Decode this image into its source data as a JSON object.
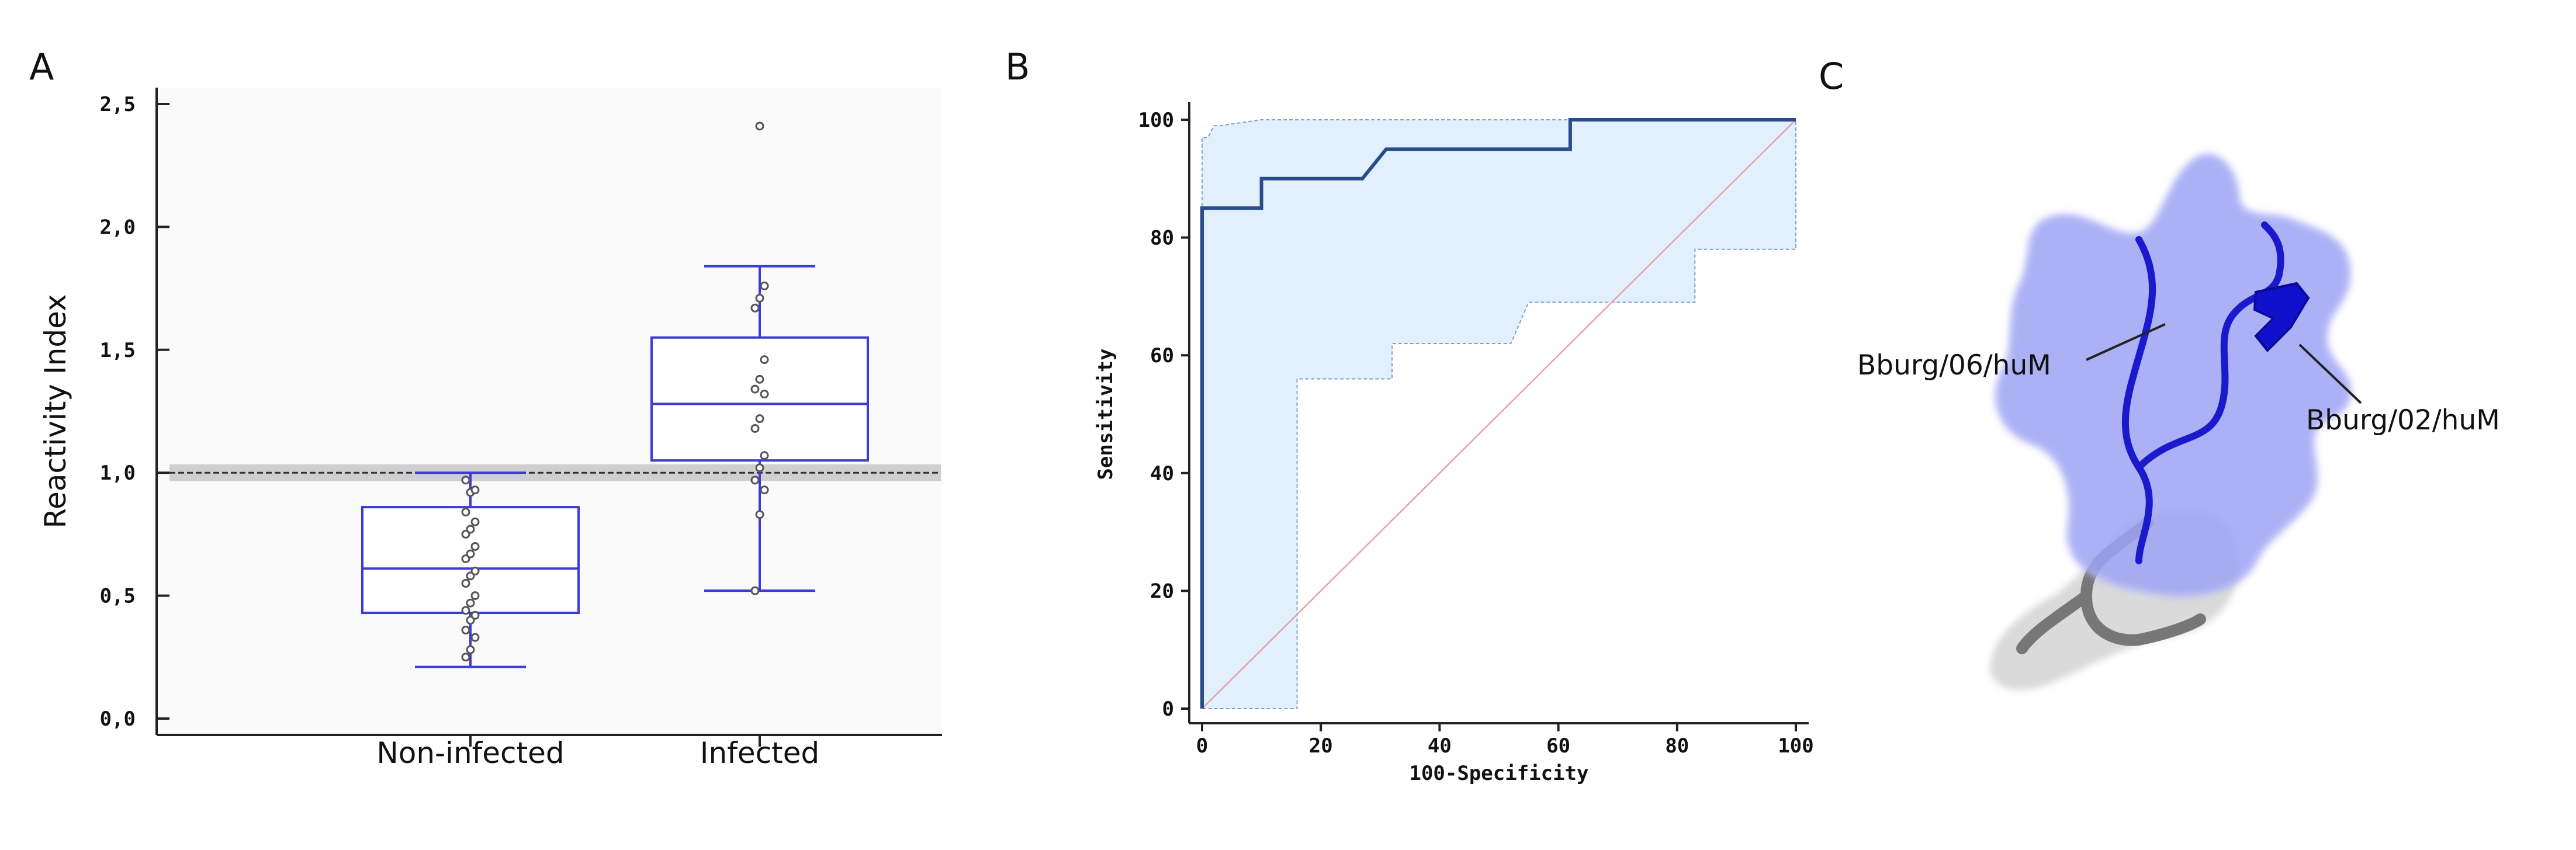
{
  "panels": {
    "a": "A",
    "b": "B",
    "c": "C"
  },
  "chart_data": [
    {
      "type": "box",
      "panel": "A",
      "ylabel": "Reactivity Index",
      "xlabel": "",
      "ylim": [
        0,
        2.5
      ],
      "yticks": [
        0,
        0.5,
        1.0,
        1.5,
        2.0,
        2.5
      ],
      "ytick_labels": [
        "0,0",
        "0,5",
        "1,0",
        "1,5",
        "2,0",
        "2,5"
      ],
      "cutoff": 1.0,
      "cutoff_band": [
        0.98,
        1.02
      ],
      "categories": [
        "Non-infected",
        "Infected"
      ],
      "boxes": [
        {
          "name": "Non-infected",
          "whisker_low": 0.21,
          "q1": 0.43,
          "median": 0.61,
          "q3": 0.86,
          "whisker_high": 1.0,
          "points": [
            0.25,
            0.28,
            0.33,
            0.36,
            0.4,
            0.42,
            0.44,
            0.47,
            0.5,
            0.55,
            0.58,
            0.6,
            0.65,
            0.67,
            0.7,
            0.75,
            0.77,
            0.8,
            0.84,
            0.92,
            0.93,
            0.97
          ]
        },
        {
          "name": "Infected",
          "whisker_low": 0.52,
          "q1": 1.05,
          "median": 1.28,
          "q3": 1.55,
          "whisker_high": 1.84,
          "points": [
            0.52,
            0.83,
            0.93,
            0.97,
            1.02,
            1.07,
            1.18,
            1.22,
            1.32,
            1.34,
            1.38,
            1.46,
            1.67,
            1.71,
            1.76
          ],
          "outliers": [
            2.41
          ]
        }
      ]
    },
    {
      "type": "line",
      "panel": "B",
      "title": "",
      "xlabel": "100-Specificity",
      "ylabel": "Sensitivity",
      "xlim": [
        0,
        100
      ],
      "ylim": [
        0,
        100
      ],
      "xticks": [
        0,
        20,
        40,
        60,
        80,
        100
      ],
      "yticks": [
        0,
        20,
        40,
        60,
        80,
        100
      ],
      "roc_curve": {
        "x": [
          0,
          0,
          10,
          10,
          27,
          31,
          31,
          62,
          62,
          100
        ],
        "y": [
          0,
          85,
          85,
          90,
          90,
          95,
          95,
          95,
          100,
          100
        ]
      },
      "ci_upper": {
        "x": [
          0,
          0,
          1,
          2,
          3,
          10,
          38,
          100,
          100
        ],
        "y": [
          0,
          97,
          97,
          99,
          99,
          100,
          100,
          100,
          78
        ]
      },
      "ci_lower": {
        "x": [
          100,
          83,
          83,
          55,
          52,
          32,
          32,
          16,
          16,
          0
        ],
        "y": [
          78,
          78,
          69,
          69,
          62,
          62,
          56,
          56,
          0,
          0
        ]
      },
      "reference_line": {
        "x": [
          0,
          100
        ],
        "y": [
          0,
          100
        ]
      }
    }
  ],
  "structure": {
    "label_left": "Bburg/06/huM",
    "label_right": "Bburg/02/huM"
  }
}
